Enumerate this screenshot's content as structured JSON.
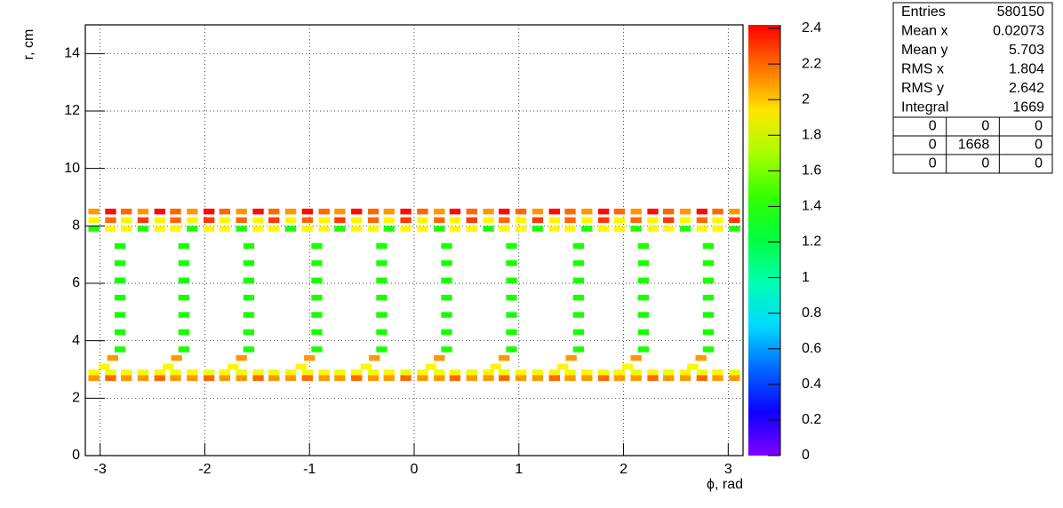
{
  "chart_data": {
    "type": "heatmap",
    "x_label": "ϕ, rad",
    "y_label": "r, cm",
    "xlim": [
      -3.1416,
      3.1416
    ],
    "xticks": [
      -3,
      -2,
      -1,
      0,
      1,
      2,
      3
    ],
    "ylim": [
      0,
      15
    ],
    "yticks": [
      0,
      2,
      4,
      6,
      8,
      10,
      12,
      14
    ],
    "zlim": [
      0,
      2.42
    ],
    "zticks": [
      0,
      0.2,
      0.4,
      0.6,
      0.8,
      1,
      1.2,
      1.4,
      1.6,
      1.8,
      2,
      2.2,
      2.4
    ],
    "grid": true,
    "rows": [
      {
        "y": 8.5,
        "x": [
          -3.06,
          -2.9,
          -2.75,
          -2.59,
          -2.43,
          -2.28,
          -2.12,
          -1.96,
          -1.81,
          -1.65,
          -1.49,
          -1.34,
          -1.18,
          -1.02,
          -0.86,
          -0.71,
          -0.55,
          -0.39,
          -0.24,
          -0.08,
          0.08,
          0.24,
          0.39,
          0.55,
          0.71,
          0.86,
          1.02,
          1.18,
          1.34,
          1.49,
          1.65,
          1.81,
          1.96,
          2.12,
          2.28,
          2.43,
          2.59,
          2.75,
          2.9,
          3.06
        ],
        "z": [
          2.1,
          2.4,
          2.2,
          2.1,
          2.4,
          2.2,
          2.1,
          2.4,
          2.2,
          2.1,
          2.4,
          2.2,
          2.1,
          2.4,
          2.2,
          2.1,
          2.4,
          2.2,
          2.1,
          2.4,
          2.2,
          2.1,
          2.4,
          2.2,
          2.1,
          2.4,
          2.2,
          2.1,
          2.4,
          2.2,
          2.1,
          2.4,
          2.2,
          2.1,
          2.4,
          2.2,
          2.1,
          2.4,
          2.2,
          2.1
        ]
      },
      {
        "y": 8.2,
        "x": [
          -3.06,
          -2.9,
          -2.75,
          -2.59,
          -2.43,
          -2.28,
          -2.12,
          -1.96,
          -1.81,
          -1.65,
          -1.49,
          -1.34,
          -1.18,
          -1.02,
          -0.86,
          -0.71,
          -0.55,
          -0.39,
          -0.24,
          -0.08,
          0.08,
          0.24,
          0.39,
          0.55,
          0.71,
          0.86,
          1.02,
          1.18,
          1.34,
          1.49,
          1.65,
          1.81,
          1.96,
          2.12,
          2.28,
          2.43,
          2.59,
          2.75,
          2.9,
          3.06
        ],
        "z": [
          1.9,
          2.2,
          1.9,
          2.3,
          1.9,
          2.2,
          1.9,
          2.3,
          1.9,
          2.2,
          1.9,
          2.3,
          1.9,
          2.2,
          1.9,
          2.3,
          1.9,
          2.2,
          1.9,
          2.3,
          1.9,
          2.2,
          1.9,
          2.3,
          1.9,
          2.2,
          1.9,
          2.3,
          1.9,
          2.2,
          1.9,
          2.3,
          1.9,
          2.2,
          1.9,
          2.3,
          1.9,
          2.2,
          1.9,
          2.3
        ]
      },
      {
        "y": 7.9,
        "x": [
          -3.06,
          -2.9,
          -2.75,
          -2.59,
          -2.43,
          -2.28,
          -2.12,
          -1.96,
          -1.81,
          -1.65,
          -1.49,
          -1.34,
          -1.18,
          -1.02,
          -0.86,
          -0.71,
          -0.55,
          -0.39,
          -0.24,
          -0.08,
          0.08,
          0.24,
          0.39,
          0.55,
          0.71,
          0.86,
          1.02,
          1.18,
          1.34,
          1.49,
          1.65,
          1.81,
          1.96,
          2.12,
          2.28,
          2.43,
          2.59,
          2.75,
          2.9,
          3.06
        ],
        "z": [
          1.4,
          1.9,
          1.9,
          1.4,
          1.9,
          1.9,
          1.4,
          1.9,
          1.9,
          1.4,
          1.9,
          1.9,
          1.4,
          1.9,
          1.9,
          1.4,
          1.9,
          1.9,
          1.4,
          1.9,
          1.9,
          1.4,
          1.9,
          1.9,
          1.4,
          1.9,
          1.9,
          1.4,
          1.9,
          1.9,
          1.4,
          1.9,
          1.9,
          1.4,
          1.9,
          1.9,
          1.4,
          1.9,
          1.9,
          1.4
        ]
      },
      {
        "y": 7.3,
        "x": [
          -2.81,
          -2.2,
          -1.58,
          -0.93,
          -0.31,
          0.31,
          0.93,
          1.57,
          2.19,
          2.81
        ],
        "z": [
          1.4,
          1.4,
          1.4,
          1.4,
          1.4,
          1.4,
          1.4,
          1.4,
          1.4,
          1.4
        ]
      },
      {
        "y": 6.7,
        "x": [
          -2.81,
          -2.2,
          -1.58,
          -0.93,
          -0.31,
          0.31,
          0.93,
          1.57,
          2.19,
          2.81
        ],
        "z": [
          1.4,
          1.4,
          1.4,
          1.4,
          1.4,
          1.4,
          1.4,
          1.4,
          1.4,
          1.4
        ]
      },
      {
        "y": 6.1,
        "x": [
          -2.81,
          -2.2,
          -1.58,
          -0.93,
          -0.31,
          0.31,
          0.93,
          1.57,
          2.19,
          2.81
        ],
        "z": [
          1.4,
          1.4,
          1.4,
          1.4,
          1.4,
          1.4,
          1.4,
          1.4,
          1.4,
          1.4
        ]
      },
      {
        "y": 5.5,
        "x": [
          -2.81,
          -2.2,
          -1.58,
          -0.93,
          -0.31,
          0.31,
          0.93,
          1.57,
          2.19,
          2.81
        ],
        "z": [
          1.4,
          1.4,
          1.4,
          1.4,
          1.4,
          1.4,
          1.4,
          1.4,
          1.4,
          1.4
        ]
      },
      {
        "y": 4.9,
        "x": [
          -2.81,
          -2.2,
          -1.58,
          -0.93,
          -0.31,
          0.31,
          0.93,
          1.57,
          2.19,
          2.81
        ],
        "z": [
          1.4,
          1.4,
          1.4,
          1.4,
          1.4,
          1.4,
          1.4,
          1.4,
          1.4,
          1.4
        ]
      },
      {
        "y": 4.3,
        "x": [
          -2.81,
          -2.2,
          -1.58,
          -0.93,
          -0.31,
          0.31,
          0.93,
          1.57,
          2.19,
          2.81
        ],
        "z": [
          1.4,
          1.4,
          1.4,
          1.4,
          1.4,
          1.4,
          1.4,
          1.4,
          1.4,
          1.4
        ]
      },
      {
        "y": 3.7,
        "x": [
          -2.81,
          -2.2,
          -1.58,
          -0.93,
          -0.31,
          0.31,
          0.93,
          1.57,
          2.19,
          2.81
        ],
        "z": [
          1.4,
          1.4,
          1.4,
          1.4,
          1.4,
          1.4,
          1.4,
          1.4,
          1.4,
          1.4
        ]
      },
      {
        "y": 3.4,
        "x": [
          -2.88,
          -2.27,
          -1.65,
          -1.0,
          -0.38,
          0.24,
          0.86,
          1.5,
          2.12,
          2.74
        ],
        "z": [
          2.1,
          2.1,
          2.1,
          2.1,
          2.1,
          2.1,
          2.1,
          2.1,
          2.1,
          2.1
        ]
      },
      {
        "y": 3.1,
        "x": [
          -2.96,
          -2.35,
          -1.73,
          -1.08,
          -0.46,
          0.16,
          0.78,
          1.42,
          2.04,
          2.66
        ],
        "z": [
          1.9,
          1.9,
          1.9,
          1.9,
          1.9,
          1.9,
          1.9,
          1.9,
          1.9,
          1.9
        ]
      },
      {
        "y": 2.9,
        "x": [
          -3.06,
          -2.9,
          -2.75,
          -2.59,
          -2.43,
          -2.28,
          -2.12,
          -1.96,
          -1.81,
          -1.65,
          -1.49,
          -1.34,
          -1.18,
          -1.02,
          -0.86,
          -0.71,
          -0.55,
          -0.39,
          -0.24,
          -0.08,
          0.08,
          0.24,
          0.39,
          0.55,
          0.71,
          0.86,
          1.02,
          1.18,
          1.34,
          1.49,
          1.65,
          1.81,
          1.96,
          2.12,
          2.28,
          2.43,
          2.59,
          2.75,
          2.9,
          3.06
        ],
        "z": [
          1.9,
          1.85,
          1.9,
          1.85,
          1.9,
          1.85,
          1.9,
          1.85,
          1.9,
          1.85,
          1.9,
          1.85,
          1.9,
          1.85,
          1.9,
          1.85,
          1.9,
          1.85,
          1.9,
          1.85,
          1.9,
          1.85,
          1.9,
          1.85,
          1.9,
          1.85,
          1.9,
          1.85,
          1.9,
          1.85,
          1.9,
          1.85,
          1.9,
          1.85,
          1.9,
          1.85,
          1.9,
          1.85,
          1.9,
          1.85
        ]
      },
      {
        "y": 2.7,
        "x": [
          -3.06,
          -2.9,
          -2.75,
          -2.59,
          -2.43,
          -2.28,
          -2.12,
          -1.96,
          -1.81,
          -1.65,
          -1.49,
          -1.34,
          -1.18,
          -1.02,
          -0.86,
          -0.71,
          -0.55,
          -0.39,
          -0.24,
          -0.08,
          0.08,
          0.24,
          0.39,
          0.55,
          0.71,
          0.86,
          1.02,
          1.18,
          1.34,
          1.49,
          1.65,
          1.81,
          1.96,
          2.12,
          2.28,
          2.43,
          2.59,
          2.75,
          2.9,
          3.06
        ],
        "z": [
          2.1,
          2.2,
          2.1,
          2.1,
          2.2,
          2.1,
          2.1,
          2.2,
          2.1,
          2.1,
          2.2,
          2.1,
          2.1,
          2.2,
          2.1,
          2.1,
          2.2,
          2.1,
          2.1,
          2.2,
          2.1,
          2.1,
          2.2,
          2.1,
          2.1,
          2.2,
          2.1,
          2.1,
          2.2,
          2.1,
          2.1,
          2.2,
          2.1,
          2.1,
          2.2,
          2.1,
          2.1,
          2.2,
          2.1,
          2.1
        ]
      }
    ],
    "stats": {
      "rows": [
        [
          "Entries",
          580150
        ],
        [
          "Mean x",
          0.02073
        ],
        [
          "Mean y",
          5.703
        ],
        [
          "RMS x",
          1.804
        ],
        [
          "RMS y",
          2.642
        ],
        [
          "Integral",
          1669
        ]
      ],
      "grid": [
        [
          0,
          0,
          0
        ],
        [
          0,
          1668,
          0
        ],
        [
          0,
          0,
          0
        ]
      ]
    }
  }
}
